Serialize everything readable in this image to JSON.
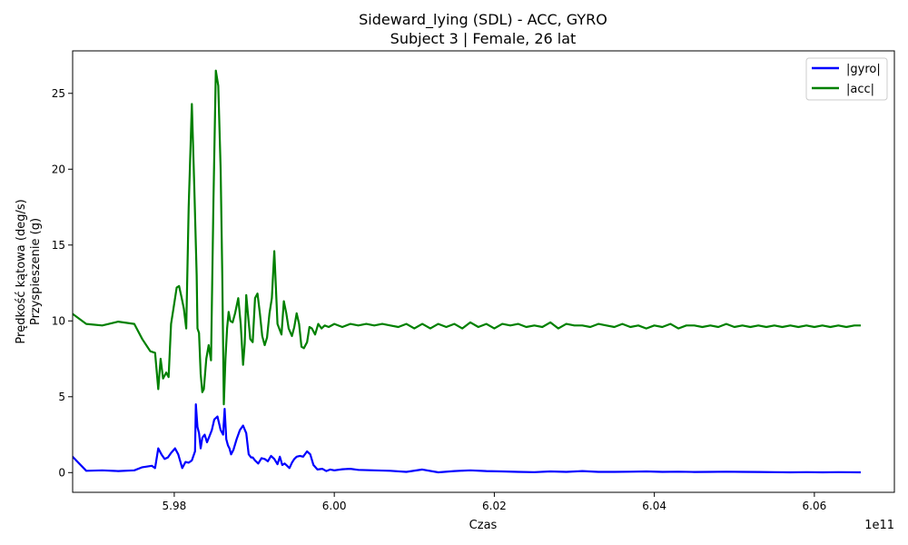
{
  "chart_data": {
    "type": "line",
    "title": "Sideward_lying (SDL) - ACC, GYRO",
    "subtitle": "Subject 3 | Female, 26 lat",
    "xlabel": "Czas",
    "ylabel_lines": [
      "Prędkość kątowa (deg/s)",
      "Przyspieszenie (g)"
    ],
    "x_offset_label": "1e11",
    "xlim": [
      5.9673,
      6.07
    ],
    "ylim": [
      -1.3,
      27.8
    ],
    "x_ticks": [
      5.98,
      6.0,
      6.02,
      6.04,
      6.06
    ],
    "x_tick_labels": [
      "5.98",
      "6.00",
      "6.02",
      "6.04",
      "6.06"
    ],
    "y_ticks": [
      0,
      5,
      10,
      15,
      20,
      25
    ],
    "y_tick_labels": [
      "0",
      "5",
      "10",
      "15",
      "20",
      "25"
    ],
    "grid": false,
    "legend_position": "top-right",
    "series": [
      {
        "name": "|gyro|",
        "color": "#0000ff",
        "x": [
          5.9672,
          5.969,
          5.971,
          5.973,
          5.975,
          5.976,
          5.9772,
          5.9776,
          5.978,
          5.9784,
          5.9788,
          5.9792,
          5.9796,
          5.9801,
          5.9805,
          5.981,
          5.9814,
          5.9818,
          5.9822,
          5.9826,
          5.9827,
          5.9829,
          5.9831,
          5.9833,
          5.9835,
          5.9838,
          5.9841,
          5.9844,
          5.9847,
          5.985,
          5.9854,
          5.9858,
          5.9861,
          5.9863,
          5.9865,
          5.9867,
          5.9869,
          5.9871,
          5.9874,
          5.9878,
          5.9882,
          5.9886,
          5.989,
          5.9893,
          5.9896,
          5.9898,
          5.9901,
          5.9905,
          5.9909,
          5.9913,
          5.9917,
          5.9921,
          5.9925,
          5.9929,
          5.9932,
          5.9935,
          5.9938,
          5.9941,
          5.9944,
          5.9947,
          5.995,
          5.9953,
          5.9957,
          5.9961,
          5.9966,
          5.997,
          5.9974,
          5.9979,
          5.9985,
          5.999,
          5.9995,
          6.0,
          6.001,
          6.002,
          6.003,
          6.005,
          6.007,
          6.009,
          6.011,
          6.013,
          6.015,
          6.017,
          6.019,
          6.021,
          6.023,
          6.025,
          6.027,
          6.029,
          6.031,
          6.033,
          6.035,
          6.037,
          6.039,
          6.041,
          6.043,
          6.045,
          6.047,
          6.049,
          6.051,
          6.053,
          6.055,
          6.057,
          6.059,
          6.061,
          6.063,
          6.0658
        ],
        "y": [
          1.1,
          0.12,
          0.15,
          0.1,
          0.15,
          0.35,
          0.45,
          0.3,
          1.6,
          1.2,
          0.9,
          1.0,
          1.3,
          1.6,
          1.2,
          0.3,
          0.7,
          0.65,
          0.8,
          1.4,
          4.5,
          3.0,
          2.6,
          1.6,
          2.3,
          2.5,
          2.0,
          2.4,
          2.8,
          3.5,
          3.7,
          2.8,
          2.5,
          4.2,
          2.2,
          1.8,
          1.6,
          1.2,
          1.5,
          2.2,
          2.8,
          3.1,
          2.6,
          1.2,
          1.0,
          1.0,
          0.8,
          0.6,
          0.95,
          0.9,
          0.75,
          1.1,
          0.9,
          0.55,
          1.05,
          0.5,
          0.6,
          0.45,
          0.3,
          0.65,
          0.9,
          1.05,
          1.1,
          1.05,
          1.4,
          1.2,
          0.5,
          0.2,
          0.25,
          0.1,
          0.2,
          0.15,
          0.22,
          0.25,
          0.18,
          0.15,
          0.12,
          0.05,
          0.2,
          0.02,
          0.1,
          0.15,
          0.1,
          0.08,
          0.05,
          0.03,
          0.08,
          0.05,
          0.1,
          0.05,
          0.05,
          0.06,
          0.08,
          0.05,
          0.06,
          0.04,
          0.05,
          0.06,
          0.05,
          0.04,
          0.03,
          0.02,
          0.03,
          0.02,
          0.03,
          0.02
        ]
      },
      {
        "name": "|acc|",
        "color": "#008000",
        "x": [
          5.9672,
          5.969,
          5.971,
          5.973,
          5.975,
          5.976,
          5.977,
          5.9776,
          5.978,
          5.9783,
          5.9786,
          5.979,
          5.9793,
          5.9796,
          5.9799,
          5.9803,
          5.9806,
          5.9809,
          5.9812,
          5.9815,
          5.9818,
          5.9822,
          5.9825,
          5.9827,
          5.9828,
          5.9829,
          5.9831,
          5.9833,
          5.9835,
          5.9837,
          5.984,
          5.9843,
          5.9846,
          5.9849,
          5.9852,
          5.9855,
          5.9858,
          5.986,
          5.9861,
          5.9862,
          5.9863,
          5.9864,
          5.9866,
          5.9868,
          5.987,
          5.9873,
          5.9876,
          5.988,
          5.9883,
          5.9886,
          5.9888,
          5.989,
          5.9892,
          5.9895,
          5.9898,
          5.9901,
          5.9904,
          5.9907,
          5.991,
          5.9913,
          5.9916,
          5.9919,
          5.9922,
          5.9925,
          5.9929,
          5.9934,
          5.9937,
          5.994,
          5.9943,
          5.9947,
          5.995,
          5.9953,
          5.9956,
          5.9959,
          5.9962,
          5.9966,
          5.9969,
          5.9972,
          5.9976,
          5.998,
          5.9984,
          5.9988,
          5.9993,
          6.0,
          6.001,
          6.002,
          6.003,
          6.004,
          6.005,
          6.006,
          6.007,
          6.008,
          6.009,
          6.01,
          6.011,
          6.012,
          6.013,
          6.014,
          6.015,
          6.016,
          6.017,
          6.018,
          6.019,
          6.02,
          6.021,
          6.022,
          6.023,
          6.024,
          6.025,
          6.026,
          6.027,
          6.028,
          6.029,
          6.03,
          6.031,
          6.032,
          6.033,
          6.034,
          6.035,
          6.036,
          6.037,
          6.038,
          6.039,
          6.04,
          6.041,
          6.042,
          6.043,
          6.044,
          6.045,
          6.046,
          6.047,
          6.048,
          6.049,
          6.05,
          6.051,
          6.052,
          6.053,
          6.054,
          6.055,
          6.056,
          6.057,
          6.058,
          6.059,
          6.06,
          6.061,
          6.062,
          6.063,
          6.064,
          6.065,
          6.0658
        ],
        "y": [
          10.5,
          9.8,
          9.7,
          9.95,
          9.8,
          8.8,
          8.0,
          7.9,
          5.5,
          7.5,
          6.2,
          6.6,
          6.3,
          9.8,
          10.8,
          12.2,
          12.3,
          11.6,
          10.8,
          9.5,
          17.5,
          24.3,
          19.0,
          15.0,
          13.0,
          9.5,
          9.2,
          6.5,
          5.3,
          5.5,
          7.5,
          8.4,
          7.4,
          18.0,
          26.5,
          25.5,
          20.0,
          13.0,
          8.5,
          4.5,
          6.0,
          7.5,
          9.5,
          10.6,
          10.0,
          9.9,
          10.5,
          11.5,
          9.8,
          7.1,
          8.5,
          11.7,
          10.5,
          8.8,
          8.6,
          11.5,
          11.8,
          10.5,
          9.0,
          8.4,
          8.9,
          10.5,
          11.5,
          14.6,
          9.8,
          9.1,
          11.3,
          10.5,
          9.5,
          9.0,
          9.6,
          10.5,
          9.8,
          8.3,
          8.2,
          8.6,
          9.6,
          9.5,
          9.1,
          9.8,
          9.5,
          9.7,
          9.6,
          9.8,
          9.6,
          9.8,
          9.7,
          9.8,
          9.7,
          9.8,
          9.7,
          9.6,
          9.8,
          9.5,
          9.8,
          9.5,
          9.8,
          9.6,
          9.8,
          9.5,
          9.9,
          9.6,
          9.8,
          9.5,
          9.8,
          9.7,
          9.8,
          9.6,
          9.7,
          9.6,
          9.9,
          9.5,
          9.8,
          9.7,
          9.7,
          9.6,
          9.8,
          9.7,
          9.6,
          9.8,
          9.6,
          9.7,
          9.5,
          9.7,
          9.6,
          9.8,
          9.5,
          9.7,
          9.7,
          9.6,
          9.7,
          9.6,
          9.8,
          9.6,
          9.7,
          9.6,
          9.7,
          9.6,
          9.7,
          9.6,
          9.7,
          9.6,
          9.7,
          9.6,
          9.7,
          9.6,
          9.7,
          9.6,
          9.7,
          9.7
        ]
      }
    ]
  }
}
